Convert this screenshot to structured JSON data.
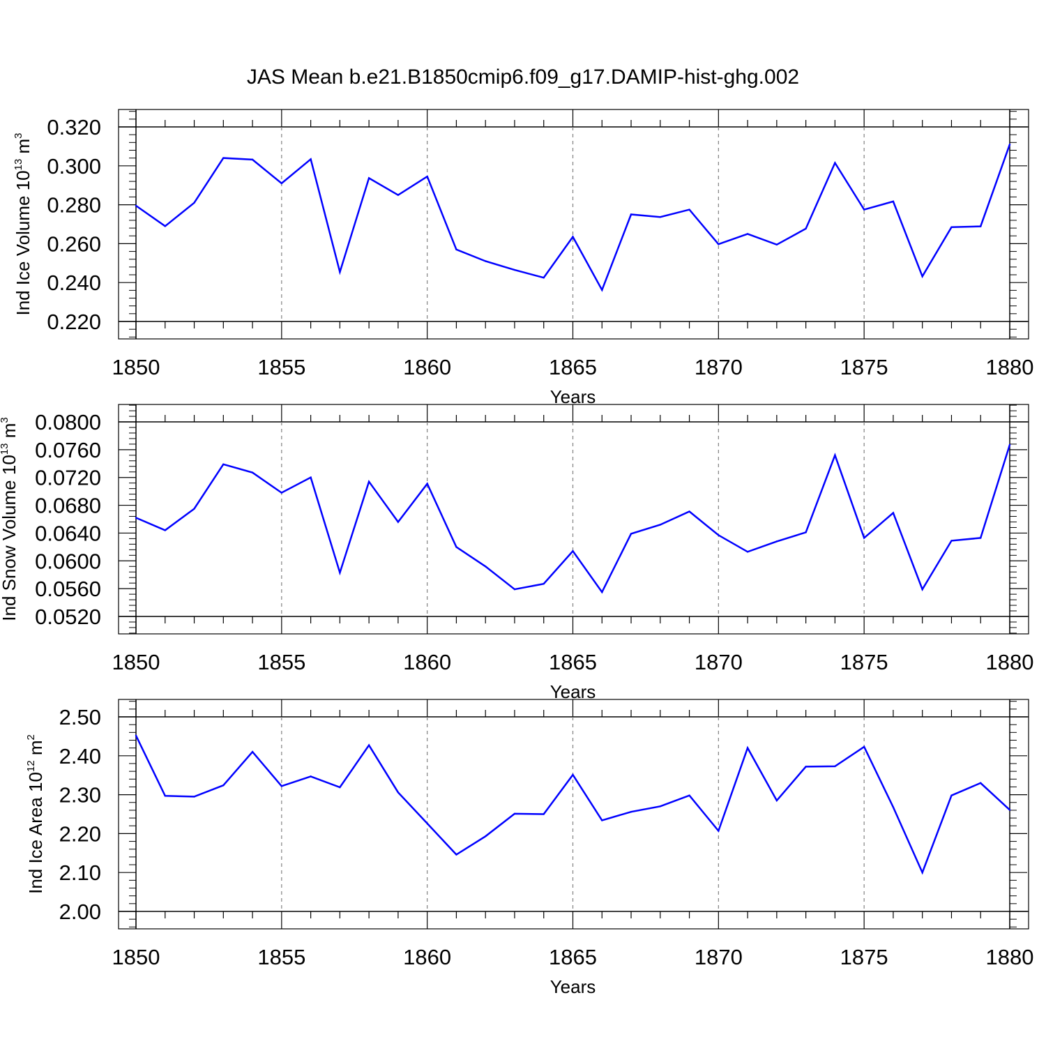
{
  "title": "JAS Mean b.e21.B1850cmip6.f09_g17.DAMIP-hist-ghg.002",
  "colors": {
    "line": "#0000ff",
    "axis": "#000000",
    "grid": "#808080"
  },
  "chart_data": [
    {
      "type": "line",
      "xlabel": "Years",
      "ylabel": {
        "prefix": "Ind Ice Volume 10",
        "exp": "13",
        "unit": " m",
        "unit_exp": "3"
      },
      "xlim": [
        1850,
        1880
      ],
      "ylim": [
        0.22,
        0.32
      ],
      "xticks": [
        1850,
        1855,
        1860,
        1865,
        1870,
        1875,
        1880
      ],
      "xtick_labels": [
        "1850",
        "1855",
        "1860",
        "1865",
        "1870",
        "1875",
        "1880"
      ],
      "yticks": [
        0.22,
        0.24,
        0.26,
        0.28,
        0.3,
        0.32
      ],
      "ytick_labels": [
        "0.220",
        "0.240",
        "0.260",
        "0.280",
        "0.300",
        "0.320"
      ],
      "grid": "vertical-dashed",
      "series": [
        {
          "name": "Ind Ice Volume",
          "x": [
            1850,
            1851,
            1852,
            1853,
            1854,
            1855,
            1856,
            1857,
            1858,
            1859,
            1860,
            1861,
            1862,
            1863,
            1864,
            1865,
            1866,
            1867,
            1868,
            1869,
            1870,
            1871,
            1872,
            1873,
            1874,
            1875,
            1876,
            1877,
            1878,
            1879,
            1880
          ],
          "values": [
            0.2795,
            0.269,
            0.281,
            0.304,
            0.3032,
            0.291,
            0.3034,
            0.2454,
            0.2937,
            0.285,
            0.2945,
            0.257,
            0.251,
            0.2465,
            0.2425,
            0.2635,
            0.2362,
            0.275,
            0.2737,
            0.2775,
            0.2597,
            0.265,
            0.2595,
            0.2677,
            0.3015,
            0.2775,
            0.2817,
            0.2432,
            0.2685,
            0.2689,
            0.311
          ]
        }
      ]
    },
    {
      "type": "line",
      "xlabel": "Years",
      "ylabel": {
        "prefix": "Ind Snow Volume 10",
        "exp": "13",
        "unit": " m",
        "unit_exp": "3"
      },
      "xlim": [
        1850,
        1880
      ],
      "ylim": [
        0.052,
        0.08
      ],
      "xticks": [
        1850,
        1855,
        1860,
        1865,
        1870,
        1875,
        1880
      ],
      "xtick_labels": [
        "1850",
        "1855",
        "1860",
        "1865",
        "1870",
        "1875",
        "1880"
      ],
      "yticks": [
        0.052,
        0.056,
        0.06,
        0.064,
        0.068,
        0.072,
        0.076,
        0.08
      ],
      "ytick_labels": [
        "0.0520",
        "0.0560",
        "0.0600",
        "0.0640",
        "0.0680",
        "0.0720",
        "0.0760",
        "0.0800"
      ],
      "grid": "vertical-dashed",
      "series": [
        {
          "name": "Ind Snow Volume",
          "x": [
            1850,
            1851,
            1852,
            1853,
            1854,
            1855,
            1856,
            1857,
            1858,
            1859,
            1860,
            1861,
            1862,
            1863,
            1864,
            1865,
            1866,
            1867,
            1868,
            1869,
            1870,
            1871,
            1872,
            1873,
            1874,
            1875,
            1876,
            1877,
            1878,
            1879,
            1880
          ],
          "values": [
            0.0662,
            0.0644,
            0.0675,
            0.0739,
            0.0727,
            0.0698,
            0.072,
            0.0583,
            0.0714,
            0.0656,
            0.0711,
            0.062,
            0.0592,
            0.0559,
            0.0567,
            0.0614,
            0.0555,
            0.0639,
            0.0652,
            0.0671,
            0.0637,
            0.0613,
            0.0628,
            0.0641,
            0.0752,
            0.0633,
            0.0669,
            0.0559,
            0.0629,
            0.0633,
            0.0767
          ]
        }
      ]
    },
    {
      "type": "line",
      "xlabel": "Years",
      "ylabel": {
        "prefix": "Ind Ice Area 10",
        "exp": "12",
        "unit": " m",
        "unit_exp": "2"
      },
      "xlim": [
        1850,
        1880
      ],
      "ylim": [
        2.0,
        2.5
      ],
      "xticks": [
        1850,
        1855,
        1860,
        1865,
        1870,
        1875,
        1880
      ],
      "xtick_labels": [
        "1850",
        "1855",
        "1860",
        "1865",
        "1870",
        "1875",
        "1880"
      ],
      "yticks": [
        2.0,
        2.1,
        2.2,
        2.3,
        2.4,
        2.5
      ],
      "ytick_labels": [
        "2.00",
        "2.10",
        "2.20",
        "2.30",
        "2.40",
        "2.50"
      ],
      "grid": "vertical-dashed",
      "series": [
        {
          "name": "Ind Ice Area",
          "x": [
            1850,
            1851,
            1852,
            1853,
            1854,
            1855,
            1856,
            1857,
            1858,
            1859,
            1860,
            1861,
            1862,
            1863,
            1864,
            1865,
            1866,
            1867,
            1868,
            1869,
            1870,
            1871,
            1872,
            1873,
            1874,
            1875,
            1876,
            1877,
            1878,
            1879,
            1880
          ],
          "values": [
            2.452,
            2.297,
            2.295,
            2.324,
            2.41,
            2.322,
            2.347,
            2.319,
            2.427,
            2.306,
            2.226,
            2.146,
            2.193,
            2.251,
            2.25,
            2.351,
            2.234,
            2.256,
            2.27,
            2.298,
            2.207,
            2.42,
            2.285,
            2.372,
            2.373,
            2.423,
            2.268,
            2.1,
            2.298,
            2.33,
            2.261
          ]
        }
      ]
    }
  ]
}
